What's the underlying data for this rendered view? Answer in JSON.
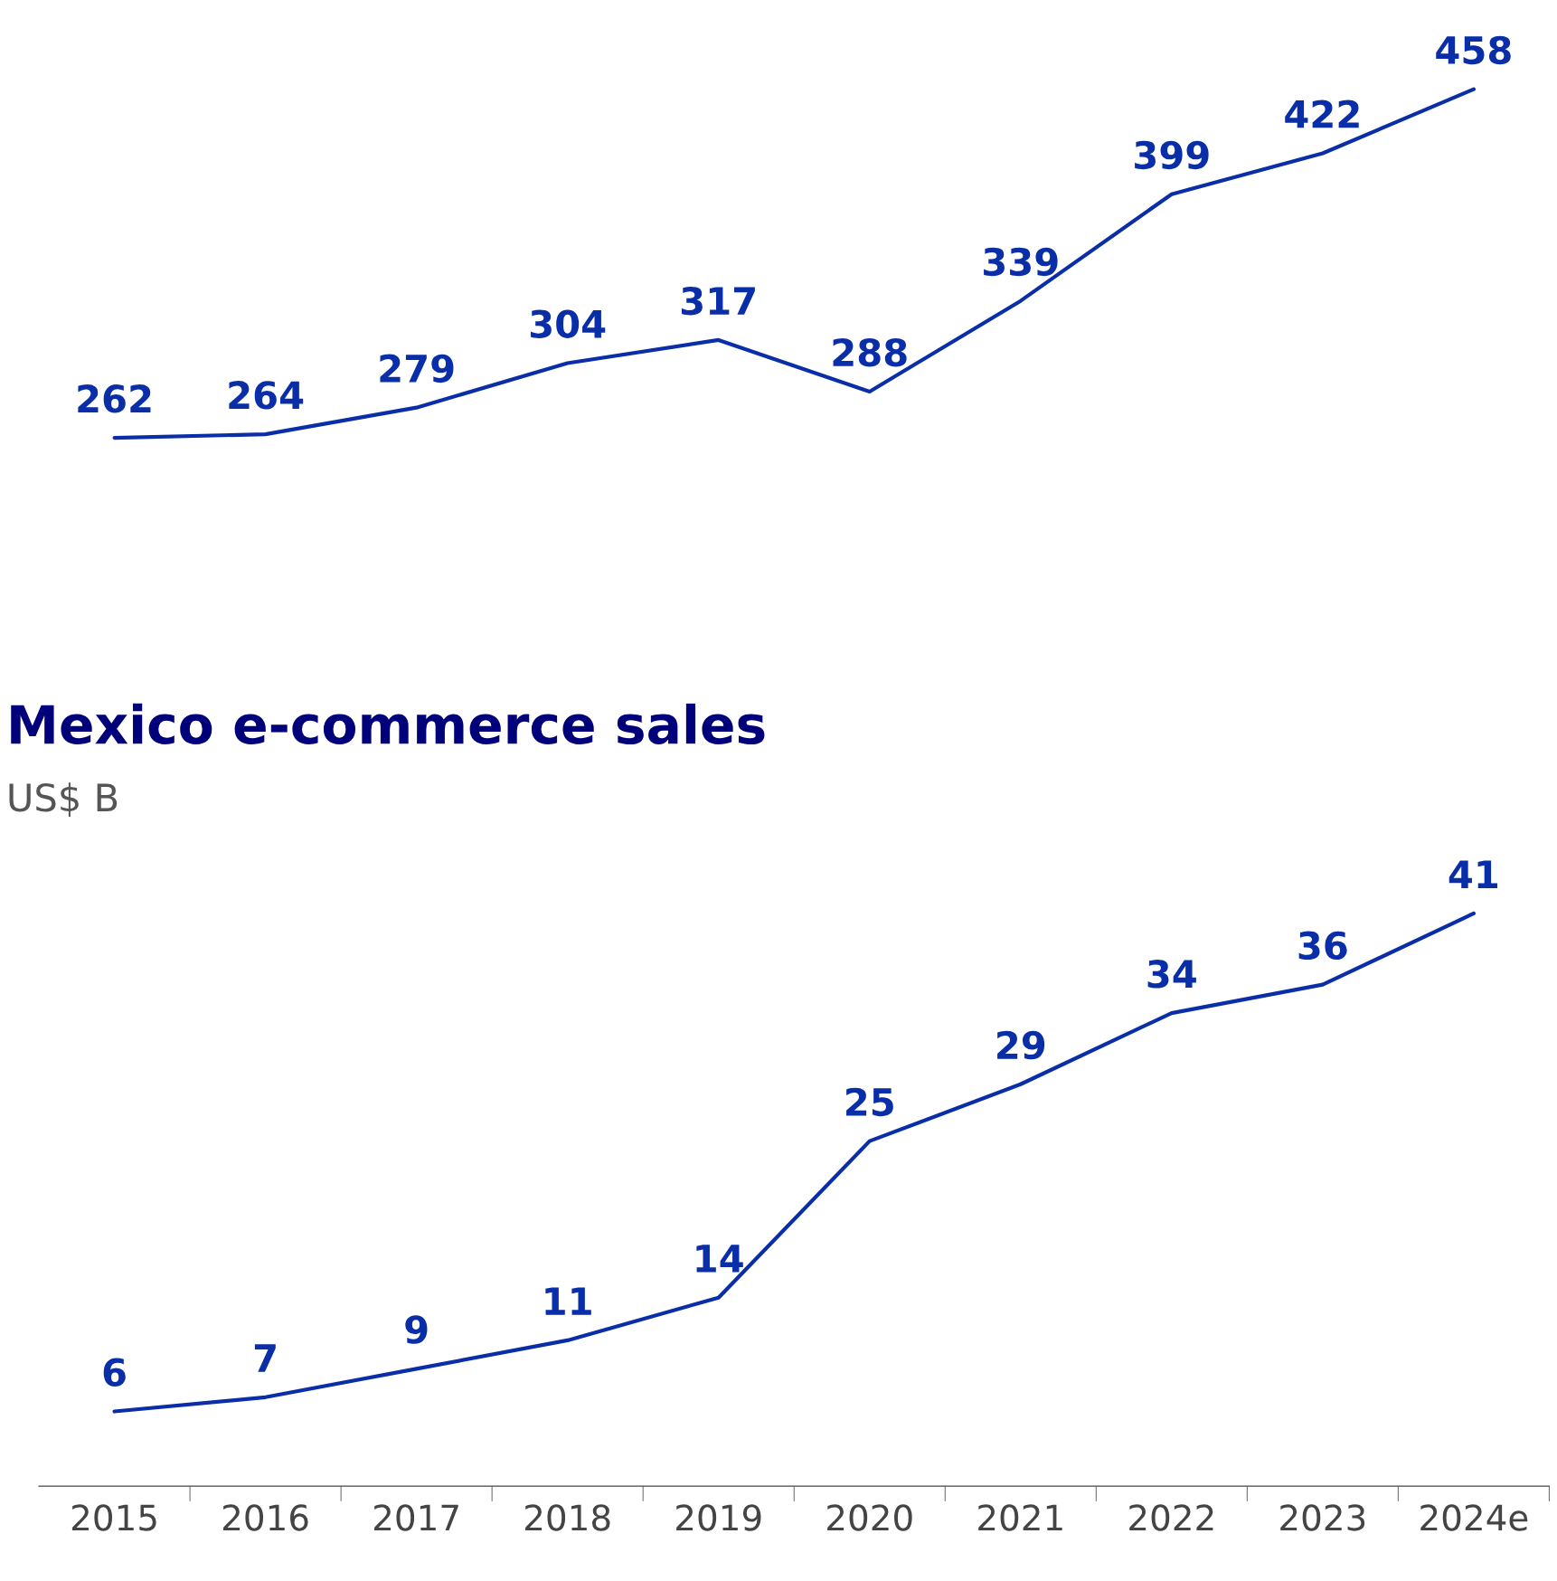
{
  "chart_data": [
    {
      "type": "line",
      "categories": [
        null,
        null,
        null,
        null,
        null,
        null,
        null,
        null,
        null,
        null
      ],
      "tick_labels": false,
      "data_labels": true,
      "grid": false,
      "legend": false,
      "series": [
        {
          "color": "#0a2ea8",
          "values": [
            262,
            264,
            279,
            304,
            317,
            288,
            339,
            399,
            422,
            458
          ]
        }
      ]
    },
    {
      "type": "line",
      "title": "Mexico e-commerce sales",
      "subtitle": "US$ B",
      "categories": [
        "2015",
        "2016",
        "2017",
        "2018",
        "2019",
        "2020",
        "2021",
        "2022",
        "2023",
        "2024e"
      ],
      "tick_labels": "x",
      "data_labels": true,
      "grid": false,
      "legend": false,
      "series": [
        {
          "color": "#0a2ea8",
          "values": [
            6,
            7,
            9,
            11,
            14,
            25,
            29,
            34,
            36,
            41
          ]
        }
      ]
    }
  ]
}
